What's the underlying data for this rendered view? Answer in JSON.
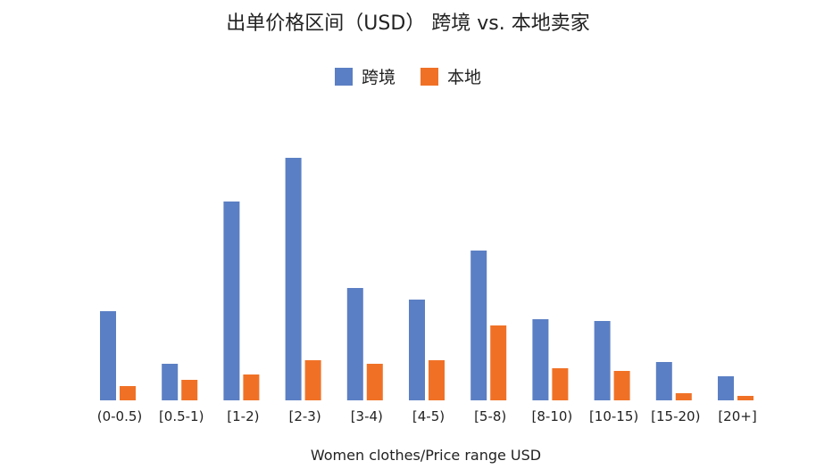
{
  "chart_data": {
    "type": "bar",
    "title": "出单价格区间（USD） 跨境 vs. 本地卖家",
    "xlabel": "Women clothes/Price range USD",
    "ylabel": "",
    "ylim": [
      0,
      280
    ],
    "grid": false,
    "legend_position": "top-center",
    "categories": [
      "(0-0.5)",
      "[0.5-1)",
      "[1-2)",
      "[2-3)",
      "[3-4)",
      "[4-5)",
      "[5-8)",
      "[8-10)",
      "[10-15)",
      "[15-20)",
      "[20+]"
    ],
    "series": [
      {
        "name": "跨境",
        "color": "#5b7fc4",
        "values": [
          100,
          41,
          223,
          272,
          126,
          113,
          168,
          91,
          89,
          43,
          27
        ]
      },
      {
        "name": "本地",
        "color": "#f07126",
        "values": [
          16,
          23,
          29,
          45,
          41,
          45,
          84,
          36,
          33,
          8,
          5
        ]
      }
    ]
  }
}
